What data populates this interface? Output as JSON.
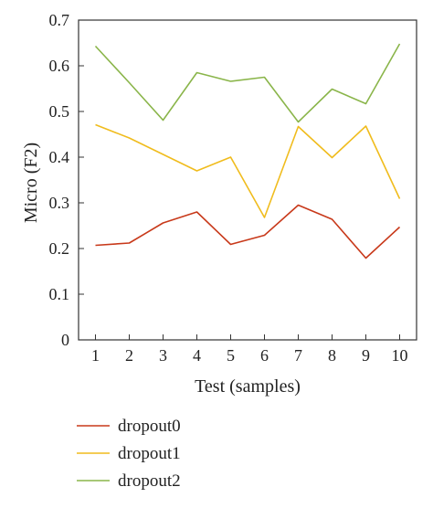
{
  "chart_data": {
    "type": "line",
    "xlabel": "Test (samples)",
    "ylabel": "Micro (F2)",
    "x": [
      1,
      2,
      3,
      4,
      5,
      6,
      7,
      8,
      9,
      10
    ],
    "xlim": [
      0.5,
      10.5
    ],
    "ylim": [
      0,
      0.7
    ],
    "x_ticks": [
      "1",
      "2",
      "3",
      "4",
      "5",
      "6",
      "7",
      "8",
      "9",
      "10"
    ],
    "y_ticks": [
      "0",
      "0.1",
      "0.2",
      "0.3",
      "0.4",
      "0.5",
      "0.6",
      "0.7"
    ],
    "grid": false,
    "legend_position": "bottom-left",
    "series": [
      {
        "name": "dropout0",
        "color": "#c8391a",
        "values": [
          0.207,
          0.212,
          0.256,
          0.28,
          0.209,
          0.229,
          0.295,
          0.264,
          0.179,
          0.247
        ]
      },
      {
        "name": "dropout1",
        "color": "#f0bc1d",
        "values": [
          0.471,
          0.442,
          0.406,
          0.37,
          0.4,
          0.268,
          0.467,
          0.399,
          0.468,
          0.309
        ]
      },
      {
        "name": "dropout2",
        "color": "#8ab54a",
        "values": [
          0.643,
          0.563,
          0.481,
          0.585,
          0.566,
          0.575,
          0.477,
          0.549,
          0.517,
          0.648
        ]
      }
    ]
  }
}
